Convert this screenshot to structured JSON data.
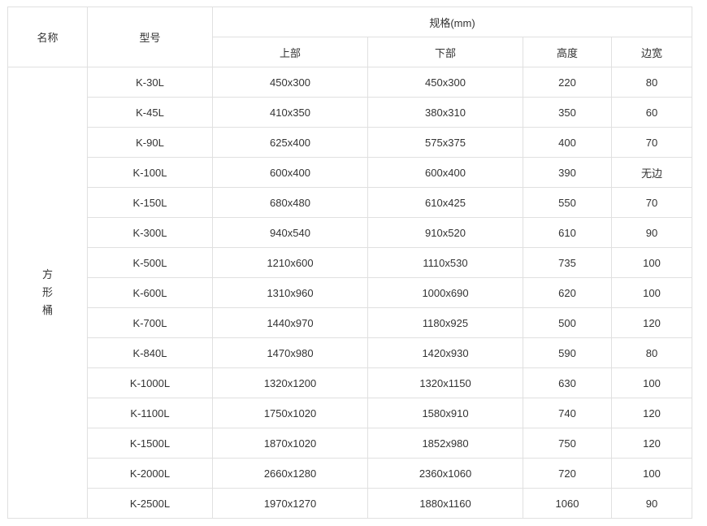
{
  "table": {
    "headers": {
      "name": "名称",
      "model": "型号",
      "spec": "规格(mm)",
      "top": "上部",
      "bottom": "下部",
      "height": "高度",
      "edge": "边宽"
    },
    "category": "方形桶",
    "rows": [
      [
        "K-30L",
        "450x300",
        "450x300",
        "220",
        "80"
      ],
      [
        "K-45L",
        "410x350",
        "380x310",
        "350",
        "60"
      ],
      [
        "K-90L",
        "625x400",
        "575x375",
        "400",
        "70"
      ],
      [
        "K-100L",
        "600x400",
        "600x400",
        "390",
        "无边"
      ],
      [
        "K-150L",
        "680x480",
        "610x425",
        "550",
        "70"
      ],
      [
        "K-300L",
        "940x540",
        "910x520",
        "610",
        "90"
      ],
      [
        "K-500L",
        "1210x600",
        "1110x530",
        "735",
        "100"
      ],
      [
        "K-600L",
        "1310x960",
        "1000x690",
        "620",
        "100"
      ],
      [
        "K-700L",
        "1440x970",
        "1180x925",
        "500",
        "120"
      ],
      [
        "K-840L",
        "1470x980",
        "1420x930",
        "590",
        "80"
      ],
      [
        "K-1000L",
        "1320x1200",
        "1320x1150",
        "630",
        "100"
      ],
      [
        "K-1100L",
        "1750x1020",
        "1580x910",
        "740",
        "120"
      ],
      [
        "K-1500L",
        "1870x1020",
        "1852x980",
        "750",
        "120"
      ],
      [
        "K-2000L",
        "2660x1280",
        "2360x1060",
        "720",
        "100"
      ],
      [
        "K-2500L",
        "1970x1270",
        "1880x1160",
        "1060",
        "90"
      ]
    ]
  }
}
